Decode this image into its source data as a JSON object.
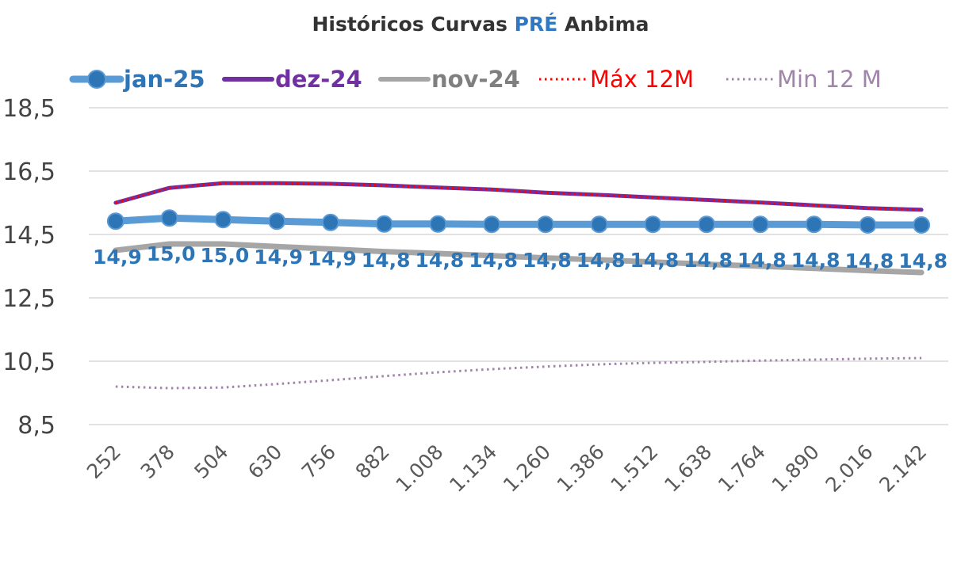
{
  "chart_data": {
    "type": "line",
    "title": {
      "prefix": "Históricos Curvas ",
      "highlight": "PRÉ",
      "suffix": " Anbima"
    },
    "categories": [
      "252",
      "378",
      "504",
      "630",
      "756",
      "882",
      "1.008",
      "1.134",
      "1.260",
      "1.386",
      "1.512",
      "1.638",
      "1.764",
      "1.890",
      "2.016",
      "2.142"
    ],
    "yticks": [
      "8,5",
      "10,5",
      "12,5",
      "14,5",
      "16,5",
      "18,5"
    ],
    "ylim": [
      8.5,
      18.5
    ],
    "grid": true,
    "legend_position": "top",
    "series": [
      {
        "name": "jan-25",
        "color": "#5b9bd5",
        "style": "solid-marker",
        "values": [
          14.92,
          15.02,
          14.97,
          14.92,
          14.88,
          14.83,
          14.83,
          14.82,
          14.82,
          14.82,
          14.82,
          14.82,
          14.82,
          14.82,
          14.8,
          14.8
        ],
        "labels": [
          "14,9",
          "15,0",
          "15,0",
          "14,9",
          "14,9",
          "14,8",
          "14,8",
          "14,8",
          "14,8",
          "14,8",
          "14,8",
          "14,8",
          "14,8",
          "14,8",
          "14,8",
          "14,8"
        ]
      },
      {
        "name": "dez-24",
        "color": "#7030a0",
        "style": "solid",
        "values": [
          15.5,
          15.97,
          16.12,
          16.12,
          16.1,
          16.05,
          15.98,
          15.92,
          15.82,
          15.75,
          15.67,
          15.59,
          15.51,
          15.42,
          15.33,
          15.28
        ]
      },
      {
        "name": "nov-24",
        "color": "#a6a6a6",
        "style": "solid",
        "values": [
          14.0,
          14.2,
          14.2,
          14.12,
          14.04,
          13.96,
          13.9,
          13.83,
          13.76,
          13.7,
          13.63,
          13.56,
          13.5,
          13.43,
          13.36,
          13.3
        ]
      },
      {
        "name": "Máx 12M",
        "color": "#ff0000",
        "style": "dotted",
        "values": [
          15.5,
          15.97,
          16.12,
          16.12,
          16.1,
          16.05,
          15.98,
          15.92,
          15.82,
          15.75,
          15.67,
          15.59,
          15.51,
          15.42,
          15.33,
          15.28
        ]
      },
      {
        "name": "Min 12 M",
        "color": "#a084a9",
        "style": "dotted",
        "values": [
          9.7,
          9.65,
          9.67,
          9.78,
          9.9,
          10.03,
          10.15,
          10.25,
          10.33,
          10.4,
          10.45,
          10.48,
          10.52,
          10.55,
          10.58,
          10.6
        ]
      }
    ]
  }
}
